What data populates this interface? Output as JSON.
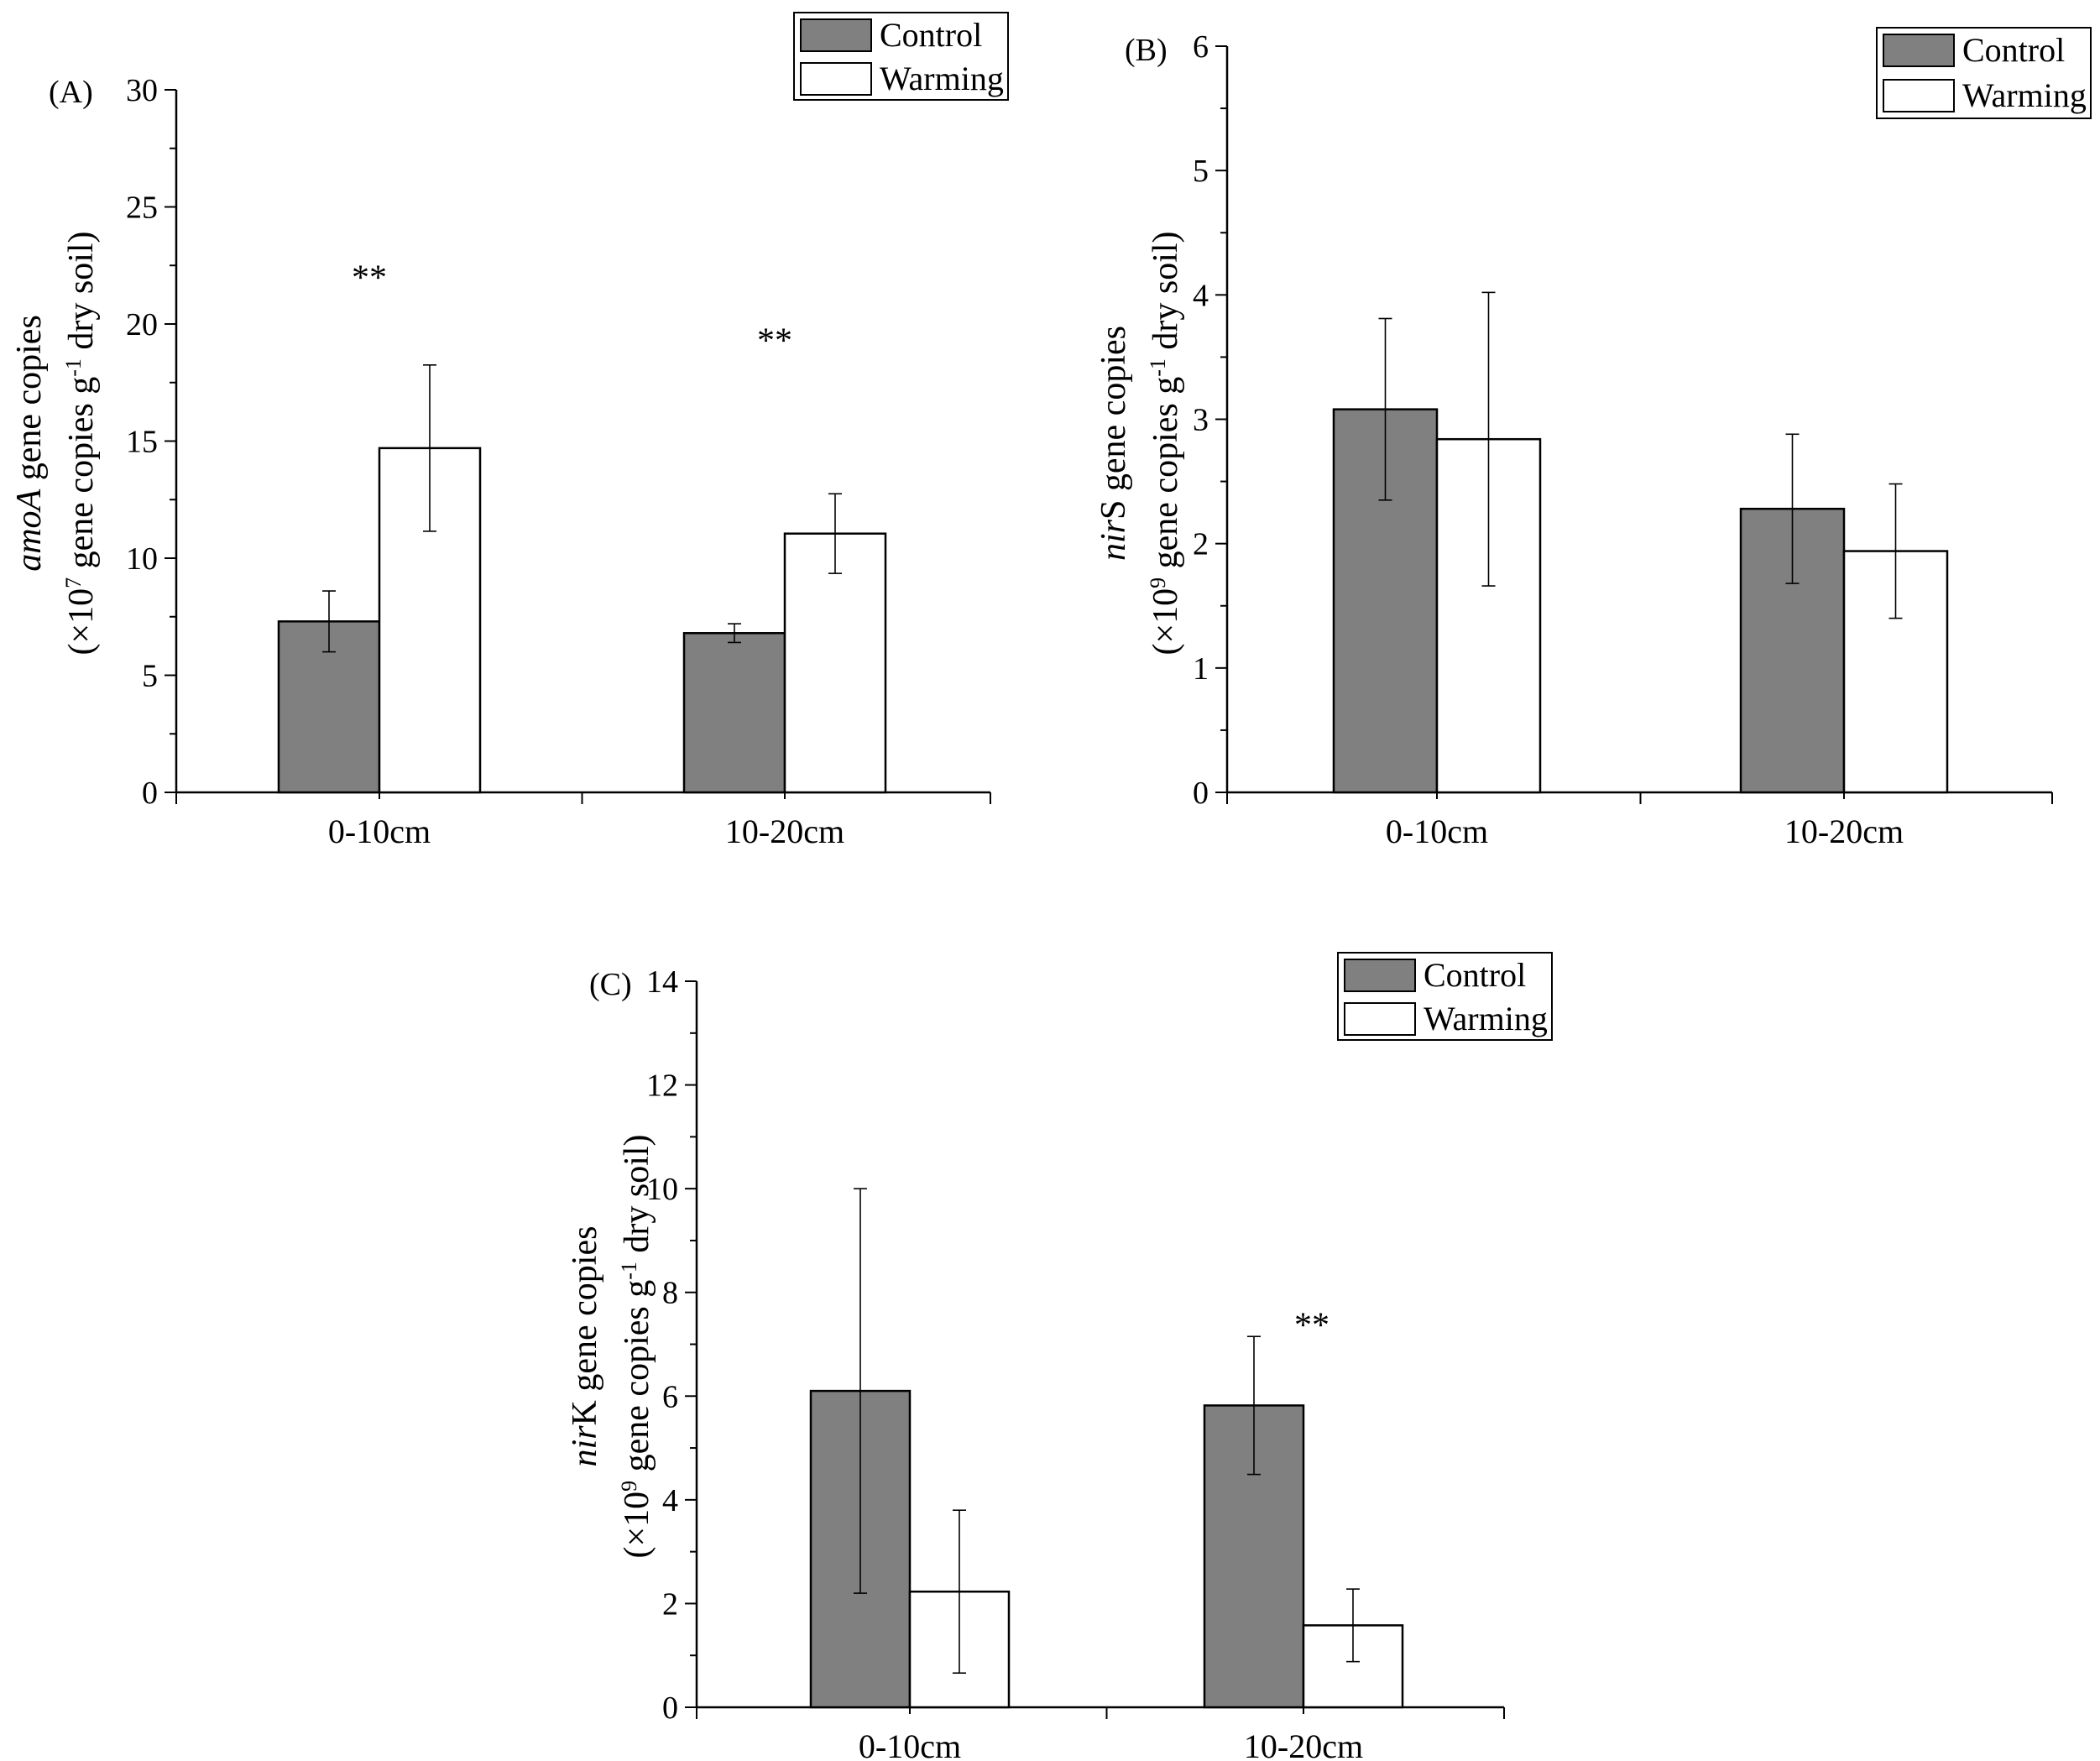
{
  "colors": {
    "control": "#808080",
    "warming": "#ffffff",
    "outline": "#000000"
  },
  "chart_data": [
    {
      "type": "bar",
      "panel_label": "(A)",
      "categories": [
        "0-10cm",
        "10-20cm"
      ],
      "series": [
        {
          "name": "Control",
          "values": [
            7.3,
            6.8
          ],
          "errors": [
            1.3,
            0.4
          ]
        },
        {
          "name": "Warming",
          "values": [
            14.7,
            11.05
          ],
          "errors": [
            3.55,
            1.7
          ]
        }
      ],
      "significance": [
        "**",
        "**"
      ],
      "significance_y": [
        22.5,
        19.8
      ],
      "ylim": [
        0,
        30
      ],
      "yticks": [
        "0",
        "5",
        "10",
        "15",
        "20",
        "25",
        "30"
      ],
      "ylabel": {
        "gene": "amoA",
        "gene_suffix": " gene copies",
        "unit_prefix": "(×10",
        "exponent": "7",
        "unit_mid": " gene copies g",
        "unit_exp": "-1",
        "unit_suffix": " dry soil)"
      },
      "legend": [
        "Control",
        "Warming"
      ]
    },
    {
      "type": "bar",
      "panel_label": "(B)",
      "categories": [
        "0-10cm",
        "10-20cm"
      ],
      "series": [
        {
          "name": "Control",
          "values": [
            3.08,
            2.28
          ],
          "errors": [
            0.73,
            0.6
          ]
        },
        {
          "name": "Warming",
          "values": [
            2.84,
            1.94
          ],
          "errors": [
            1.18,
            0.54
          ]
        }
      ],
      "significance": [
        "",
        ""
      ],
      "significance_y": [
        0,
        0
      ],
      "ylim": [
        0,
        6
      ],
      "yticks": [
        "0",
        "1",
        "2",
        "3",
        "4",
        "5",
        "6"
      ],
      "ylabel": {
        "gene": "nir",
        "gene_suffix": "S gene copies",
        "unit_prefix": "(×10",
        "exponent": "9",
        "unit_mid": " gene copies g",
        "unit_exp": "-1",
        "unit_suffix": " dry soil)"
      },
      "legend": [
        "Control",
        "Warming"
      ]
    },
    {
      "type": "bar",
      "panel_label": "(C)",
      "categories": [
        "0-10cm",
        "10-20cm"
      ],
      "series": [
        {
          "name": "Control",
          "values": [
            6.1,
            5.82
          ],
          "errors": [
            3.9,
            1.33
          ]
        },
        {
          "name": "Warming",
          "values": [
            2.23,
            1.58
          ],
          "errors": [
            1.57,
            0.7
          ]
        }
      ],
      "significance": [
        "",
        "**"
      ],
      "significance_y": [
        0,
        7.6
      ],
      "ylim": [
        0,
        14
      ],
      "yticks": [
        "0",
        "2",
        "4",
        "6",
        "8",
        "10",
        "12",
        "14"
      ],
      "ylabel": {
        "gene": "nir",
        "gene_suffix": "K gene copies",
        "unit_prefix": "(×10",
        "exponent": "9",
        "unit_mid": " gene copies g",
        "unit_exp": "-1",
        "unit_suffix": " dry soil)"
      },
      "legend": [
        "Control",
        "Warming"
      ]
    }
  ]
}
